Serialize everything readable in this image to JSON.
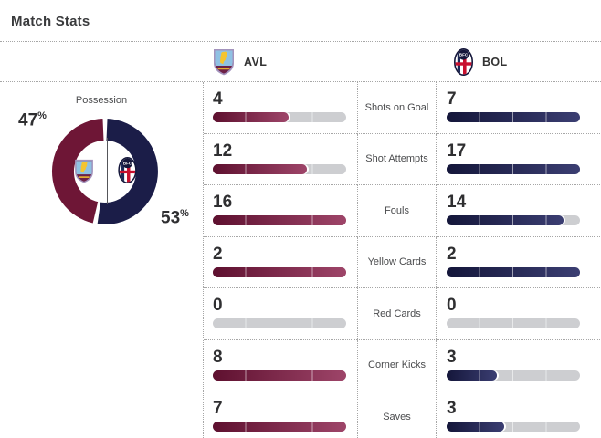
{
  "header": {
    "title": "Match Stats"
  },
  "teams": {
    "home": {
      "abbr": "AVL"
    },
    "away": {
      "abbr": "BOL"
    }
  },
  "possession": {
    "label": "Possession",
    "home": 47,
    "away": 53,
    "unit": "%"
  },
  "stats": [
    {
      "label": "Shots on Goal",
      "home": 4,
      "away": 7
    },
    {
      "label": "Shot Attempts",
      "home": 12,
      "away": 17
    },
    {
      "label": "Fouls",
      "home": 16,
      "away": 14
    },
    {
      "label": "Yellow Cards",
      "home": 2,
      "away": 2
    },
    {
      "label": "Red Cards",
      "home": 0,
      "away": 0
    },
    {
      "label": "Corner Kicks",
      "home": 8,
      "away": 3
    },
    {
      "label": "Saves",
      "home": 7,
      "away": 3
    }
  ],
  "colors": {
    "home_primary": "#6e1636",
    "home_bar_dark": "#5e102f",
    "home_bar_light": "#9e4569",
    "away_primary": "#1b1d48",
    "away_bar_dark": "#14163a",
    "away_bar_light": "#3b3e72",
    "track_gray": "#cdced1",
    "dotted_line": "#a6a6a6"
  },
  "chart_data": [
    {
      "type": "pie",
      "title": "Possession",
      "labels": [
        "AVL",
        "BOL"
      ],
      "values": [
        47,
        53
      ],
      "unit": "%",
      "colors": [
        "#6e1636",
        "#1b1d48"
      ],
      "style": "donut",
      "legend_position": "none"
    },
    {
      "type": "bar",
      "title": "Match Stats",
      "categories": [
        "Shots on Goal",
        "Shot Attempts",
        "Fouls",
        "Yellow Cards",
        "Red Cards",
        "Corner Kicks",
        "Saves"
      ],
      "series": [
        {
          "name": "AVL",
          "values": [
            4,
            12,
            16,
            2,
            0,
            8,
            7
          ]
        },
        {
          "name": "BOL",
          "values": [
            7,
            17,
            14,
            2,
            0,
            3,
            3
          ]
        }
      ],
      "note": "Each bar is filled proportionally to the row maximum of the two teams"
    }
  ]
}
